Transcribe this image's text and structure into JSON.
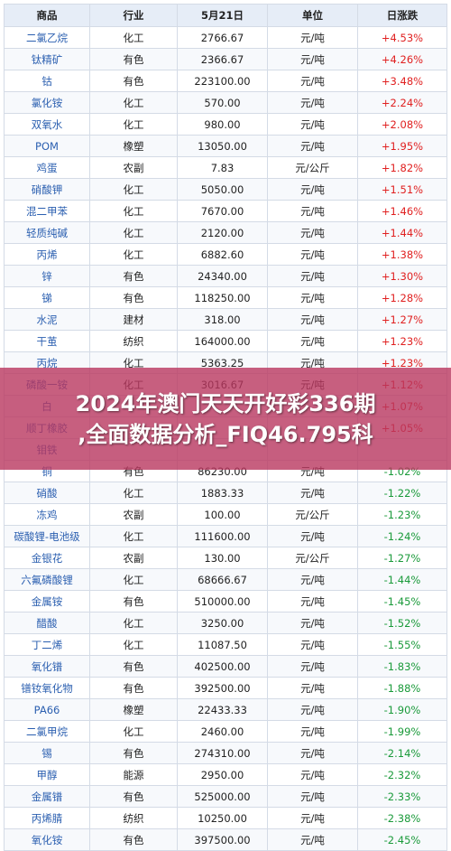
{
  "table": {
    "headers": [
      "商品",
      "行业",
      "5月21日",
      "单位",
      "日涨跌"
    ],
    "rows": [
      {
        "name": "二氯乙烷",
        "cat": "化工",
        "price": "2766.67",
        "unit": "元/吨",
        "change": "+4.53%",
        "dir": "up"
      },
      {
        "name": "钛精矿",
        "cat": "有色",
        "price": "2366.67",
        "unit": "元/吨",
        "change": "+4.26%",
        "dir": "up"
      },
      {
        "name": "钴",
        "cat": "有色",
        "price": "223100.00",
        "unit": "元/吨",
        "change": "+3.48%",
        "dir": "up"
      },
      {
        "name": "氯化铵",
        "cat": "化工",
        "price": "570.00",
        "unit": "元/吨",
        "change": "+2.24%",
        "dir": "up"
      },
      {
        "name": "双氧水",
        "cat": "化工",
        "price": "980.00",
        "unit": "元/吨",
        "change": "+2.08%",
        "dir": "up"
      },
      {
        "name": "POM",
        "cat": "橡塑",
        "price": "13050.00",
        "unit": "元/吨",
        "change": "+1.95%",
        "dir": "up"
      },
      {
        "name": "鸡蛋",
        "cat": "农副",
        "price": "7.83",
        "unit": "元/公斤",
        "change": "+1.82%",
        "dir": "up"
      },
      {
        "name": "硝酸钾",
        "cat": "化工",
        "price": "5050.00",
        "unit": "元/吨",
        "change": "+1.51%",
        "dir": "up"
      },
      {
        "name": "混二甲苯",
        "cat": "化工",
        "price": "7670.00",
        "unit": "元/吨",
        "change": "+1.46%",
        "dir": "up"
      },
      {
        "name": "轻质纯碱",
        "cat": "化工",
        "price": "2120.00",
        "unit": "元/吨",
        "change": "+1.44%",
        "dir": "up"
      },
      {
        "name": "丙烯",
        "cat": "化工",
        "price": "6882.60",
        "unit": "元/吨",
        "change": "+1.38%",
        "dir": "up"
      },
      {
        "name": "锌",
        "cat": "有色",
        "price": "24340.00",
        "unit": "元/吨",
        "change": "+1.30%",
        "dir": "up"
      },
      {
        "name": "锑",
        "cat": "有色",
        "price": "118250.00",
        "unit": "元/吨",
        "change": "+1.28%",
        "dir": "up"
      },
      {
        "name": "水泥",
        "cat": "建材",
        "price": "318.00",
        "unit": "元/吨",
        "change": "+1.27%",
        "dir": "up"
      },
      {
        "name": "干茧",
        "cat": "纺织",
        "price": "164000.00",
        "unit": "元/吨",
        "change": "+1.23%",
        "dir": "up"
      },
      {
        "name": "丙烷",
        "cat": "化工",
        "price": "5363.25",
        "unit": "元/吨",
        "change": "+1.23%",
        "dir": "up"
      },
      {
        "name": "磷酸一铵",
        "cat": "化工",
        "price": "3016.67",
        "unit": "元/吨",
        "change": "+1.12%",
        "dir": "up"
      },
      {
        "name": "白",
        "cat": "",
        "price": "",
        "unit": "",
        "change": "+1.07%",
        "dir": "up"
      },
      {
        "name": "顺丁橡胶",
        "cat": "",
        "price": "",
        "unit": "",
        "change": "+1.05%",
        "dir": "up"
      },
      {
        "name": "钼铁",
        "cat": "",
        "price": "",
        "unit": "",
        "change": "",
        "dir": "up"
      },
      {
        "name": "铜",
        "cat": "有色",
        "price": "86230.00",
        "unit": "元/吨",
        "change": "-1.02%",
        "dir": "down"
      },
      {
        "name": "硝酸",
        "cat": "化工",
        "price": "1883.33",
        "unit": "元/吨",
        "change": "-1.22%",
        "dir": "down"
      },
      {
        "name": "冻鸡",
        "cat": "农副",
        "price": "100.00",
        "unit": "元/公斤",
        "change": "-1.23%",
        "dir": "down"
      },
      {
        "name": "碳酸锂-电池级",
        "cat": "化工",
        "price": "111600.00",
        "unit": "元/吨",
        "change": "-1.24%",
        "dir": "down"
      },
      {
        "name": "金银花",
        "cat": "农副",
        "price": "130.00",
        "unit": "元/公斤",
        "change": "-1.27%",
        "dir": "down"
      },
      {
        "name": "六氟磷酸锂",
        "cat": "化工",
        "price": "68666.67",
        "unit": "元/吨",
        "change": "-1.44%",
        "dir": "down"
      },
      {
        "name": "金属铵",
        "cat": "有色",
        "price": "510000.00",
        "unit": "元/吨",
        "change": "-1.45%",
        "dir": "down"
      },
      {
        "name": "醋酸",
        "cat": "化工",
        "price": "3250.00",
        "unit": "元/吨",
        "change": "-1.52%",
        "dir": "down"
      },
      {
        "name": "丁二烯",
        "cat": "化工",
        "price": "11087.50",
        "unit": "元/吨",
        "change": "-1.55%",
        "dir": "down"
      },
      {
        "name": "氧化镨",
        "cat": "有色",
        "price": "402500.00",
        "unit": "元/吨",
        "change": "-1.83%",
        "dir": "down"
      },
      {
        "name": "镨钕氧化物",
        "cat": "有色",
        "price": "392500.00",
        "unit": "元/吨",
        "change": "-1.88%",
        "dir": "down"
      },
      {
        "name": "PA66",
        "cat": "橡塑",
        "price": "22433.33",
        "unit": "元/吨",
        "change": "-1.90%",
        "dir": "down"
      },
      {
        "name": "二氯甲烷",
        "cat": "化工",
        "price": "2460.00",
        "unit": "元/吨",
        "change": "-1.99%",
        "dir": "down"
      },
      {
        "name": "锡",
        "cat": "有色",
        "price": "274310.00",
        "unit": "元/吨",
        "change": "-2.14%",
        "dir": "down"
      },
      {
        "name": "甲醇",
        "cat": "能源",
        "price": "2950.00",
        "unit": "元/吨",
        "change": "-2.32%",
        "dir": "down"
      },
      {
        "name": "金属镨",
        "cat": "有色",
        "price": "525000.00",
        "unit": "元/吨",
        "change": "-2.33%",
        "dir": "down"
      },
      {
        "name": "丙烯腈",
        "cat": "纺织",
        "price": "10250.00",
        "unit": "元/吨",
        "change": "-2.38%",
        "dir": "down"
      },
      {
        "name": "氧化铵",
        "cat": "有色",
        "price": "397500.00",
        "unit": "元/吨",
        "change": "-2.45%",
        "dir": "down"
      }
    ]
  },
  "banner": {
    "line1": "2024年澳门天天开好彩336期",
    "line2": ",全面数据分析_FIQ46.795科"
  },
  "colors": {
    "up": "#e02020",
    "down": "#1a9a3a",
    "name_link": "#2b5fb0",
    "header_bg": "#e6edf7",
    "banner_bg": "#b9375f"
  }
}
